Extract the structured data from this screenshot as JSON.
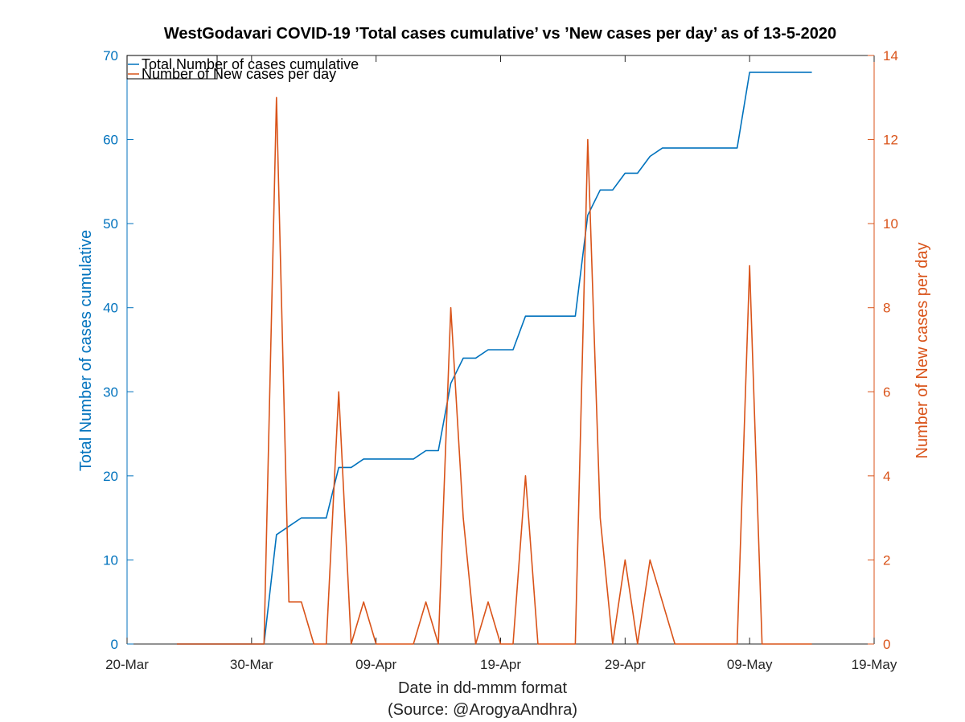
{
  "chart_data": {
    "type": "line",
    "title": "WestGodavari COVID-19 ’Total cases cumulative’ vs ’New cases per day’ as of 13-5-2020",
    "xlabel": "Date in dd-mmm format",
    "source": "(Source: @ArogyaAndhra)",
    "x_ticks": [
      "20-Mar",
      "30-Mar",
      "09-Apr",
      "19-Apr",
      "29-Apr",
      "09-May",
      "19-May"
    ],
    "x_range_days": [
      0,
      60
    ],
    "left_axis": {
      "label": "Total Number of cases cumulative",
      "ylim": [
        0,
        70
      ],
      "ticks": [
        0,
        10,
        20,
        30,
        40,
        50,
        60,
        70
      ],
      "color": "#0072BD"
    },
    "right_axis": {
      "label": "Number of New cases per day",
      "ylim": [
        0,
        14
      ],
      "ticks": [
        0,
        2,
        4,
        6,
        8,
        10,
        12,
        14
      ],
      "color": "#D95319"
    },
    "legend": [
      "Total Number of cases cumulative",
      "Number of New cases per day"
    ],
    "legend_placement": "top-left",
    "series": [
      {
        "name": "Total Number of cases cumulative",
        "axis": "left",
        "color": "#0072BD",
        "x": [
          4,
          5,
          6,
          7,
          8,
          9,
          10,
          11,
          12,
          13,
          14,
          15,
          16,
          17,
          18,
          19,
          20,
          21,
          22,
          23,
          24,
          25,
          26,
          27,
          28,
          29,
          30,
          31,
          32,
          33,
          34,
          35,
          36,
          37,
          38,
          39,
          40,
          41,
          42,
          43,
          44,
          45,
          46,
          47,
          48,
          49,
          50,
          51,
          52,
          53,
          54,
          55
        ],
        "y": [
          0,
          0,
          0,
          0,
          0,
          0,
          0,
          0,
          13,
          14,
          15,
          15,
          15,
          21,
          21,
          22,
          22,
          22,
          22,
          22,
          23,
          23,
          31,
          34,
          34,
          35,
          35,
          35,
          39,
          39,
          39,
          39,
          39,
          51,
          54,
          54,
          56,
          56,
          58,
          59,
          59,
          59,
          59,
          59,
          59,
          59,
          68,
          68,
          68,
          68,
          68,
          68
        ]
      },
      {
        "name": "Number of New cases per day",
        "axis": "right",
        "color": "#D95319",
        "x": [
          4,
          5,
          6,
          7,
          8,
          9,
          10,
          11,
          12,
          13,
          14,
          15,
          16,
          17,
          18,
          19,
          20,
          21,
          22,
          23,
          24,
          25,
          26,
          27,
          28,
          29,
          30,
          31,
          32,
          33,
          34,
          35,
          36,
          37,
          38,
          39,
          40,
          41,
          42,
          43,
          44,
          45,
          46,
          47,
          48,
          49,
          50,
          51,
          52,
          53,
          54,
          55
        ],
        "y": [
          0,
          0,
          0,
          0,
          0,
          0,
          0,
          0,
          13,
          1,
          1,
          0,
          0,
          6,
          0,
          1,
          0,
          0,
          0,
          0,
          1,
          0,
          8,
          3,
          0,
          1,
          0,
          0,
          4,
          0,
          0,
          0,
          0,
          12,
          3,
          0,
          2,
          0,
          2,
          1,
          0,
          0,
          0,
          0,
          0,
          0,
          9,
          0,
          0,
          0,
          0,
          0
        ]
      }
    ]
  }
}
